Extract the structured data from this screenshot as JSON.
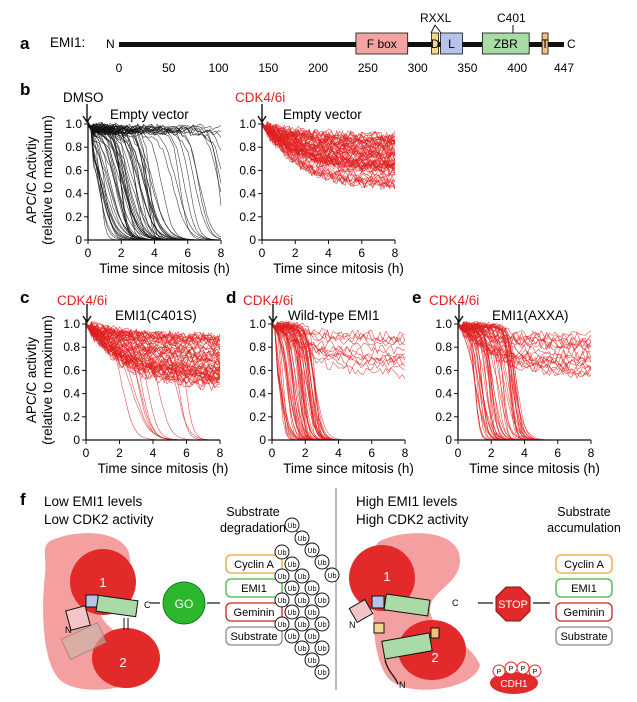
{
  "panel_a": {
    "label": "a",
    "protein_label": "EMI1:",
    "n_term": "N",
    "c_term": "C",
    "ticks": [
      "0",
      "50",
      "100",
      "150",
      "200",
      "250",
      "300",
      "350",
      "400",
      "447"
    ],
    "domains": [
      {
        "name": "F box",
        "start": 238,
        "end": 290,
        "color": "#f4a3a3"
      },
      {
        "name": "D",
        "start": 314,
        "end": 321,
        "color": "#f1d88b"
      },
      {
        "name": "L",
        "start": 323,
        "end": 345,
        "color": "#b7c4ea"
      },
      {
        "name": "ZBR",
        "start": 365,
        "end": 412,
        "color": "#a8dba5"
      },
      {
        "name": "T",
        "start": 425,
        "end": 431,
        "color": "#f1c27b"
      }
    ],
    "annotations": [
      "RXXL",
      "C401"
    ]
  },
  "panel_b": {
    "label": "b",
    "ylabel_line1": "APC/C Activtiy",
    "ylabel_line2": "(relative to maximum)",
    "xlabel": "Time since mitosis (h)",
    "yticks": [
      "0",
      "0.2",
      "0.4",
      "0.6",
      "0.8",
      "1.0"
    ],
    "xticks": [
      "0",
      "2",
      "4",
      "6",
      "8"
    ],
    "plots": [
      {
        "treatment": "DMSO",
        "treatment_color": "#111111",
        "title": "Empty vector"
      },
      {
        "treatment": "CDK4/6i",
        "treatment_color": "#e02020",
        "title": "Empty vector"
      }
    ]
  },
  "panel_c": {
    "label": "c",
    "treatment": "CDK4/6i",
    "title": "EMI1(C401S)"
  },
  "panel_d": {
    "label": "d",
    "treatment": "CDK4/6i",
    "title": "Wild-type EMI1"
  },
  "panel_e": {
    "label": "e",
    "treatment": "CDK4/6i",
    "title": "EMI1(AXXA)"
  },
  "panel_cde": {
    "ylabel_line1": "APC/C activtiy",
    "ylabel_line2": "(relative to maximum)",
    "xlabel": "Time since mitosis (h)",
    "yticks": [
      "0",
      "0.2",
      "0.4",
      "0.6",
      "0.8",
      "1.0"
    ],
    "xticks": [
      "0",
      "2",
      "4",
      "6",
      "8"
    ]
  },
  "chart_data": [
    {
      "type": "line",
      "panel": "b-left",
      "title": "Empty vector",
      "treatment": "DMSO",
      "xlabel": "Time since mitosis (h)",
      "ylabel": "APC/C Activtiy (relative to maximum)",
      "xlim": [
        0,
        8
      ],
      "ylim": [
        0,
        1.0
      ],
      "color": "#111111",
      "n_traces": 90,
      "behavior": "most traces drop to 0 between 1 and 4 h; some remain high"
    },
    {
      "type": "line",
      "panel": "b-right",
      "title": "Empty vector",
      "treatment": "CDK4/6i",
      "xlabel": "Time since mitosis (h)",
      "ylabel": "APC/C Activtiy (relative to maximum)",
      "xlim": [
        0,
        8
      ],
      "ylim": [
        0,
        1.0
      ],
      "color": "#e02020",
      "n_traces": 90,
      "behavior": "traces decline gradually to ~0.4-0.9"
    },
    {
      "type": "line",
      "panel": "c",
      "title": "EMI1(C401S)",
      "treatment": "CDK4/6i",
      "xlabel": "Time since mitosis (h)",
      "ylabel": "APC/C activtiy (relative to maximum)",
      "xlim": [
        0,
        8
      ],
      "ylim": [
        0,
        1.0
      ],
      "color": "#e02020",
      "n_traces": 90,
      "behavior": "mostly stay 0.5-0.9, few drop"
    },
    {
      "type": "line",
      "panel": "d",
      "title": "Wild-type EMI1",
      "treatment": "CDK4/6i",
      "xlabel": "Time since mitosis (h)",
      "ylabel": "APC/C activtiy (relative to maximum)",
      "xlim": [
        0,
        8
      ],
      "ylim": [
        0,
        1.0
      ],
      "color": "#e02020",
      "n_traces": 90,
      "behavior": "most drop to 0 by 1-3 h"
    },
    {
      "type": "line",
      "panel": "e",
      "title": "EMI1(AXXA)",
      "treatment": "CDK4/6i",
      "xlabel": "Time since mitosis (h)",
      "ylabel": "APC/C activtiy (relative to maximum)",
      "xlim": [
        0,
        8
      ],
      "ylim": [
        0,
        1.0
      ],
      "color": "#e02020",
      "n_traces": 90,
      "behavior": "most drop to 0 by 2-4 h"
    }
  ],
  "panel_f": {
    "label": "f",
    "left": {
      "line1": "Low EMI1 levels",
      "line2": "Low CDK2 activity",
      "header_line1": "Substrate",
      "header_line2": "degradation",
      "signal": "GO",
      "ubiquitin": "Ub"
    },
    "right": {
      "line1": "High EMI1 levels",
      "line2": "High CDK2 activity",
      "header_line1": "Substrate",
      "header_line2": "accumulation",
      "signal": "STOP",
      "cdh1": "CDH1",
      "phospho": "P"
    },
    "substrates": [
      {
        "name": "Cyclin A",
        "color": "#f0a030"
      },
      {
        "name": "EMI1",
        "color": "#3cb83c"
      },
      {
        "name": "Geminin",
        "color": "#d02020"
      },
      {
        "name": "Substrate",
        "color": "#8a8a8a"
      }
    ],
    "subunit_1": "1",
    "subunit_2": "2",
    "n_term": "N",
    "c_term": "C"
  }
}
